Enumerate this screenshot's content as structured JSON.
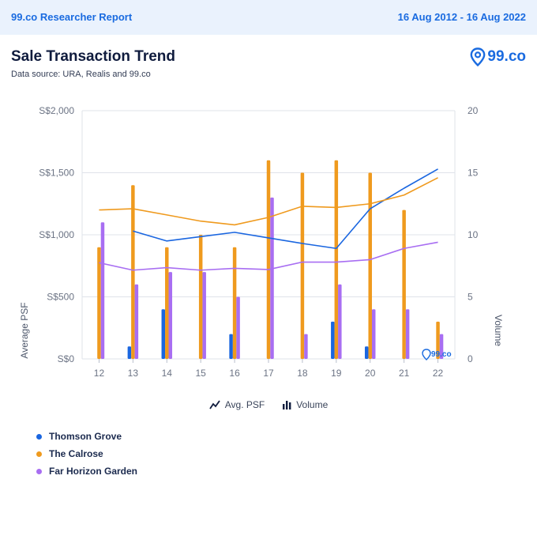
{
  "header": {
    "brand": "99.co Researcher Report",
    "date_range": "16 Aug 2012 - 16 Aug 2022"
  },
  "report": {
    "title": "Sale Transaction Trend",
    "source": "Data source: URA, Realis and 99.co",
    "logo_text": "99.co",
    "watermark_text": "99.co"
  },
  "legend": {
    "avg_psf_label": "Avg. PSF",
    "volume_label": "Volume"
  },
  "chart_data": {
    "type": "bar+line",
    "title": "Sale Transaction Trend",
    "x": [
      "12",
      "13",
      "14",
      "15",
      "16",
      "17",
      "18",
      "19",
      "20",
      "21",
      "22"
    ],
    "left_axis": {
      "label": "Average PSF",
      "range": [
        0,
        2000
      ],
      "ticks": [
        0,
        500,
        1000,
        1500,
        2000
      ],
      "tick_labels": [
        "S$0",
        "S$500",
        "S$1,000",
        "S$1,500",
        "S$2,000"
      ]
    },
    "right_axis": {
      "label": "Volume",
      "range": [
        0,
        20
      ],
      "ticks": [
        0,
        5,
        10,
        15,
        20
      ],
      "tick_labels": [
        "0",
        "5",
        "10",
        "15",
        "20"
      ]
    },
    "series": [
      {
        "name": "Thomson Grove",
        "color": "#1a66e0",
        "volume": [
          0,
          1,
          4,
          0,
          2,
          0,
          0,
          3,
          1,
          0,
          0
        ],
        "avg_psf": [
          null,
          1030,
          950,
          985,
          1020,
          975,
          930,
          890,
          1210,
          1375,
          1530
        ]
      },
      {
        "name": "The Calrose",
        "color": "#ef9a1e",
        "volume": [
          9,
          14,
          9,
          10,
          9,
          16,
          15,
          16,
          15,
          12,
          3
        ],
        "avg_psf": [
          1200,
          1210,
          1160,
          1110,
          1080,
          1140,
          1230,
          1220,
          1250,
          1320,
          1460
        ]
      },
      {
        "name": "Far Horizon Garden",
        "color": "#a86ef2",
        "volume": [
          11,
          6,
          7,
          7,
          5,
          13,
          2,
          6,
          4,
          4,
          2
        ],
        "avg_psf": [
          775,
          715,
          735,
          715,
          730,
          720,
          780,
          780,
          800,
          890,
          940
        ]
      }
    ]
  }
}
